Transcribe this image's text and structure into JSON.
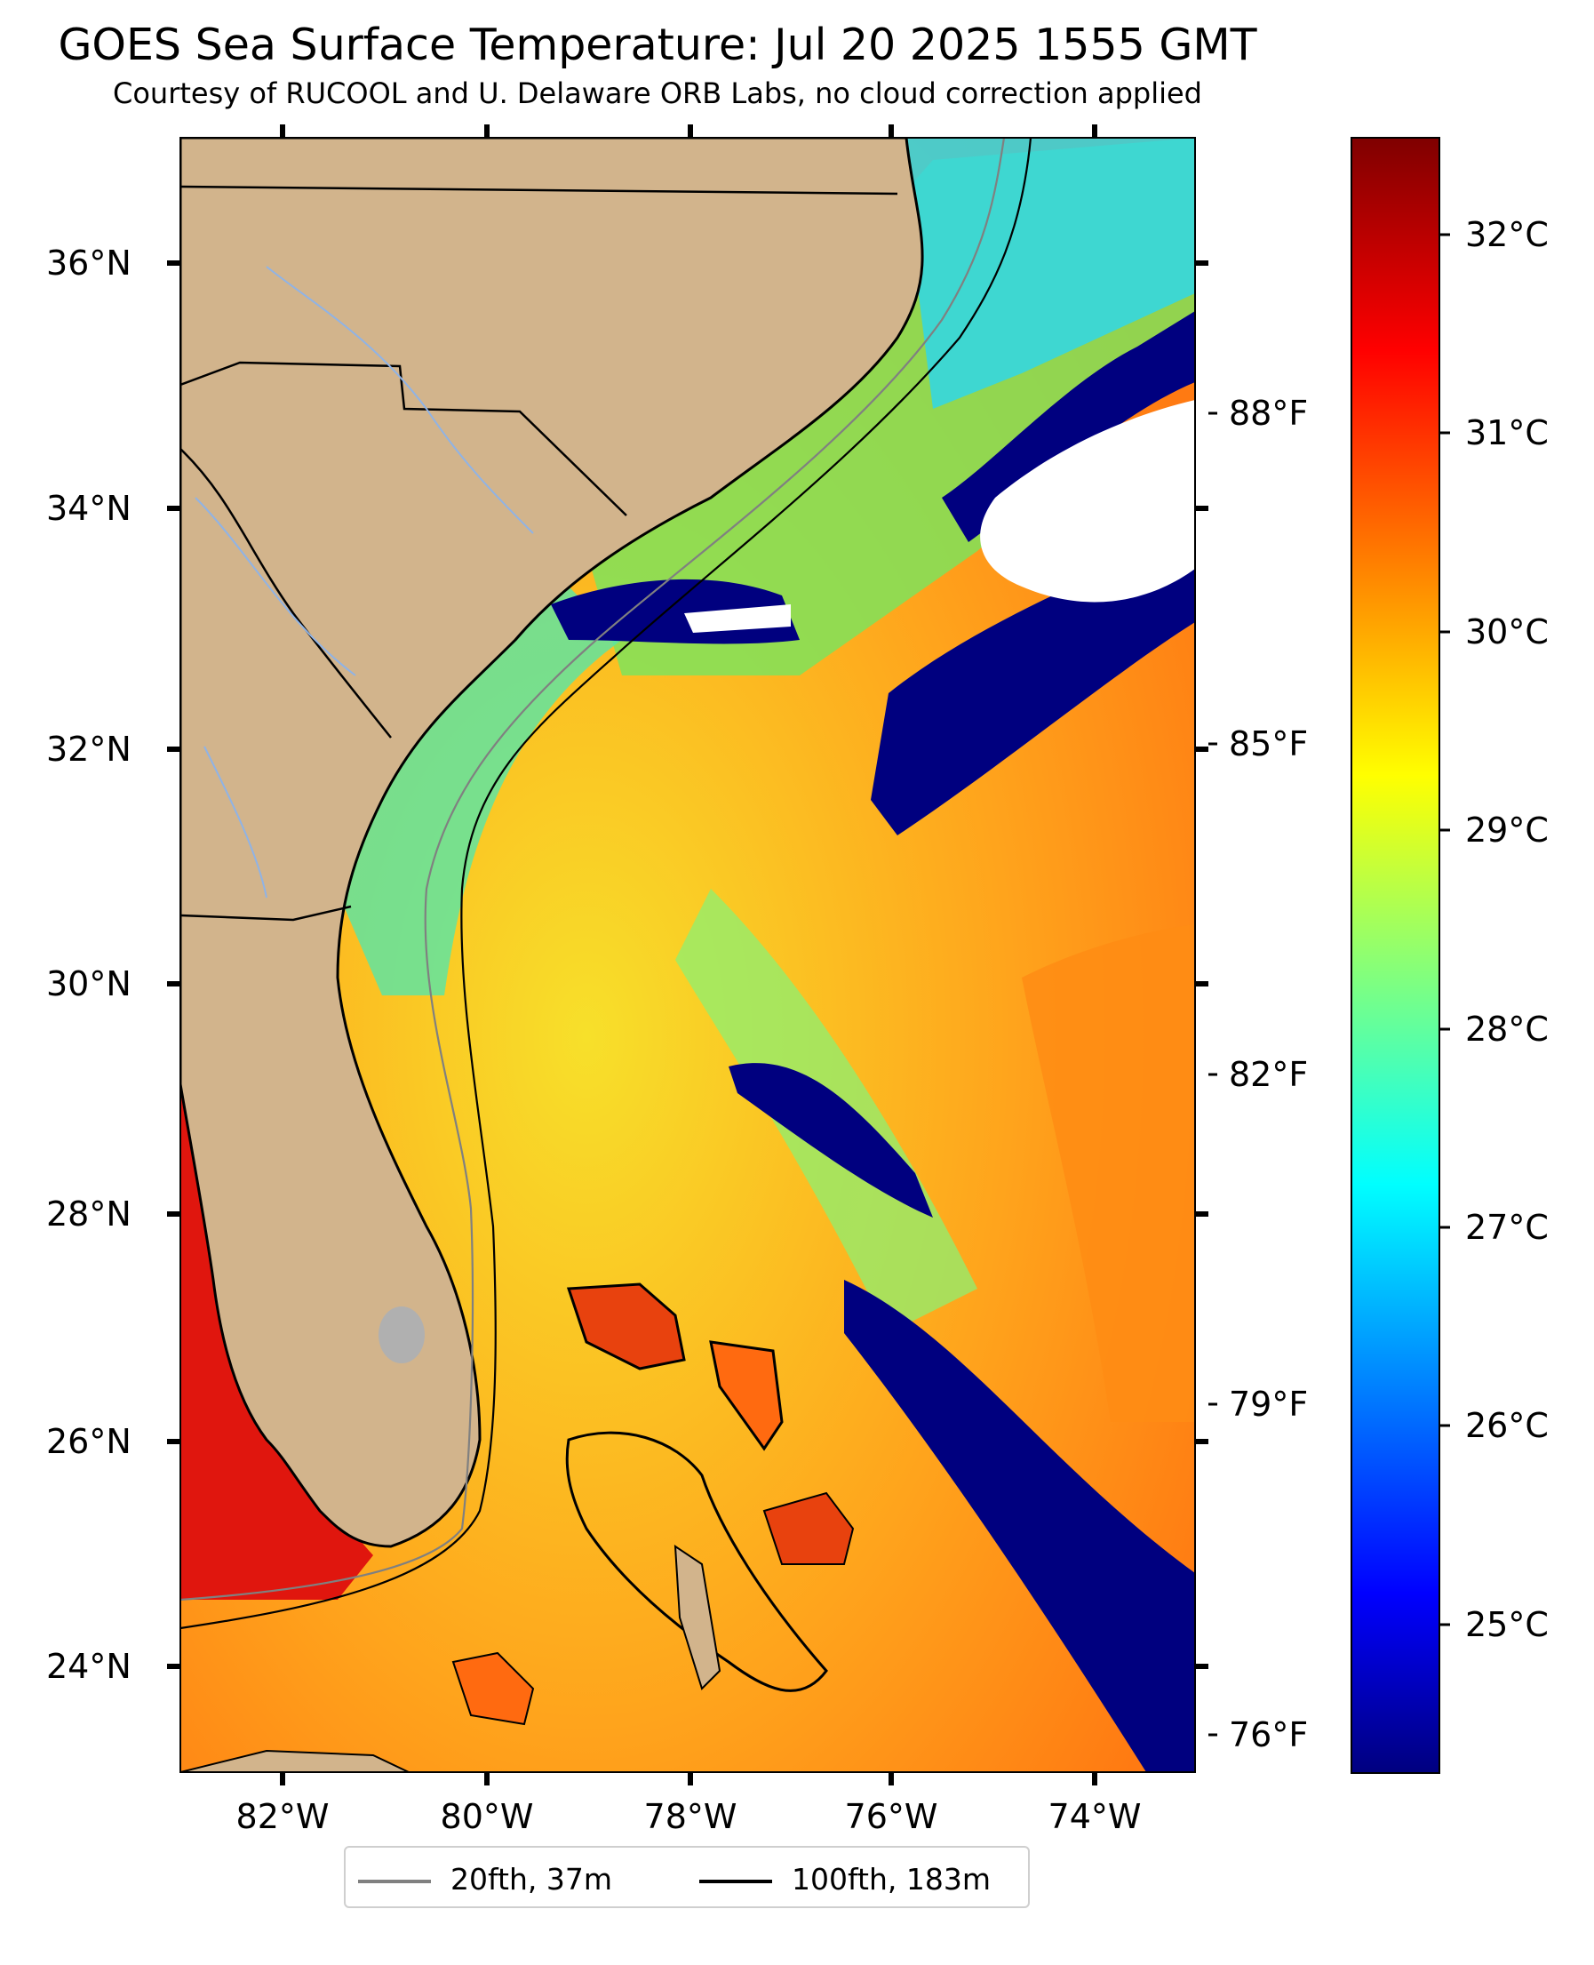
{
  "header": {
    "title": "GOES Sea Surface Temperature: Jul 20 2025 1555 GMT",
    "subtitle": "Courtesy of RUCOOL and U. Delaware ORB Labs, no cloud correction applied"
  },
  "map": {
    "lat_labels": [
      "36°N",
      "34°N",
      "32°N",
      "30°N",
      "28°N",
      "26°N",
      "24°N"
    ],
    "lon_labels": [
      "82°W",
      "80°W",
      "78°W",
      "76°W",
      "74°W"
    ],
    "fahrenheit_labels": [
      "88°F",
      "85°F",
      "82°F",
      "79°F",
      "76°F"
    ],
    "colors": {
      "land": "#d2b48c",
      "cloud": "#ffffff",
      "coast": "#000000",
      "rivers": "#8fb3e6"
    }
  },
  "colorbar": {
    "labels": [
      "32°C",
      "31°C",
      "30°C",
      "29°C",
      "28°C",
      "27°C",
      "26°C",
      "25°C"
    ],
    "colormap": "jet",
    "range_c": [
      24.4,
      32.5
    ]
  },
  "legend": {
    "items": [
      {
        "label": "20fth, 37m",
        "color": "#808080"
      },
      {
        "label": "100fth, 183m",
        "color": "#000000"
      }
    ]
  }
}
